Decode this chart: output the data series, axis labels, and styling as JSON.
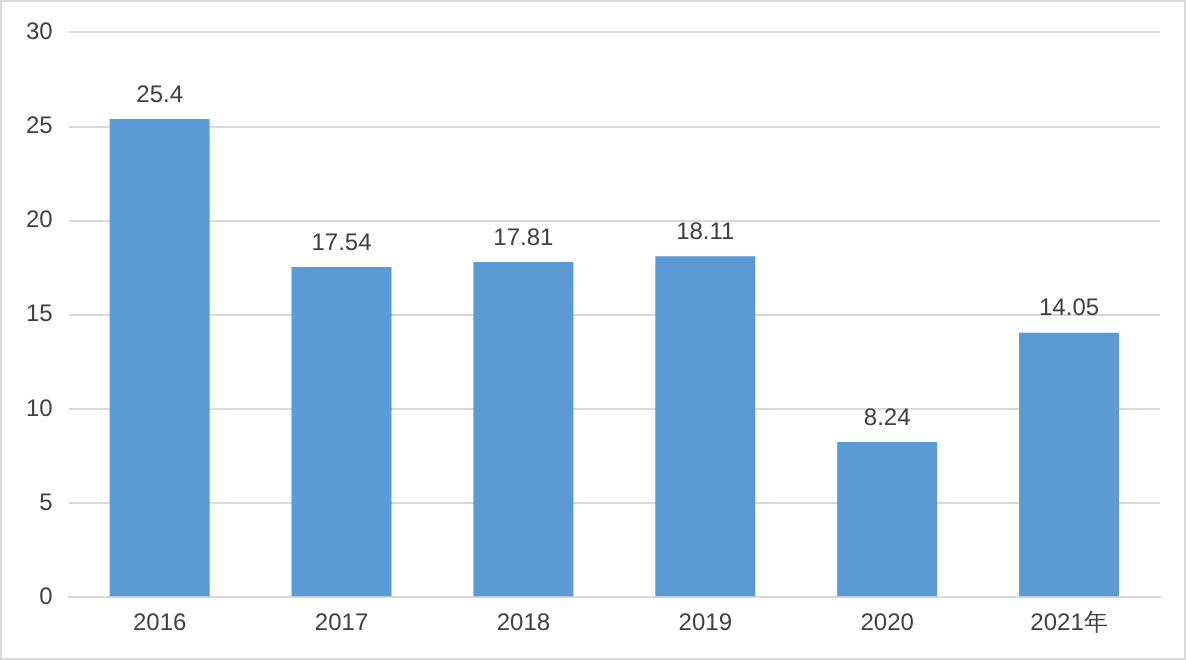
{
  "chart_data": {
    "type": "bar",
    "categories": [
      "2016",
      "2017",
      "2018",
      "2019",
      "2020",
      "2021年"
    ],
    "values": [
      25.4,
      17.54,
      17.81,
      18.11,
      8.24,
      14.05
    ],
    "color": "#5b9bd5",
    "ylim": [
      0,
      30
    ],
    "yticks": [
      0,
      5,
      10,
      15,
      20,
      25,
      30
    ],
    "grid": "y",
    "data_labels": true,
    "legend": false
  }
}
